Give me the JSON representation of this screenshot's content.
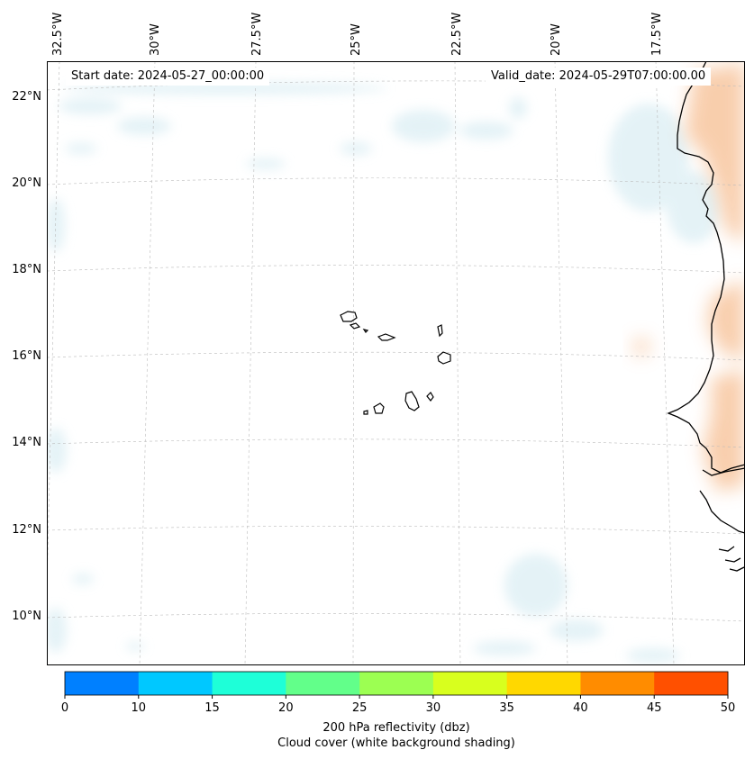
{
  "map": {
    "start_date": "Start date: 2024-05-27_00:00:00",
    "valid_date": "Valid_date: 2024-05-29T07:00:00.00",
    "lon_labels": [
      "32.5°W",
      "30°W",
      "27.5°W",
      "25°W",
      "22.5°W",
      "20°W",
      "17.5°W"
    ],
    "lat_labels": [
      "22°N",
      "20°N",
      "18°N",
      "16°N",
      "14°N",
      "12°N",
      "10°N"
    ]
  },
  "colorbar": {
    "ticks": [
      "0",
      "10",
      "15",
      "20",
      "25",
      "30",
      "35",
      "40",
      "45",
      "50"
    ],
    "colors": [
      "#0080ff",
      "#00c8ff",
      "#1effd8",
      "#62ff8a",
      "#9cff52",
      "#d8ff1e",
      "#ffd800",
      "#ff8c00",
      "#ff5000"
    ],
    "label_line1": "200 hPa reflectivity (dbz)",
    "label_line2": "Cloud cover (white background shading)"
  },
  "colors": {
    "cloud": "#cfe8f0",
    "warm": "#f8c9a4",
    "coast": "#000000",
    "grid": "#bbbbbb"
  }
}
